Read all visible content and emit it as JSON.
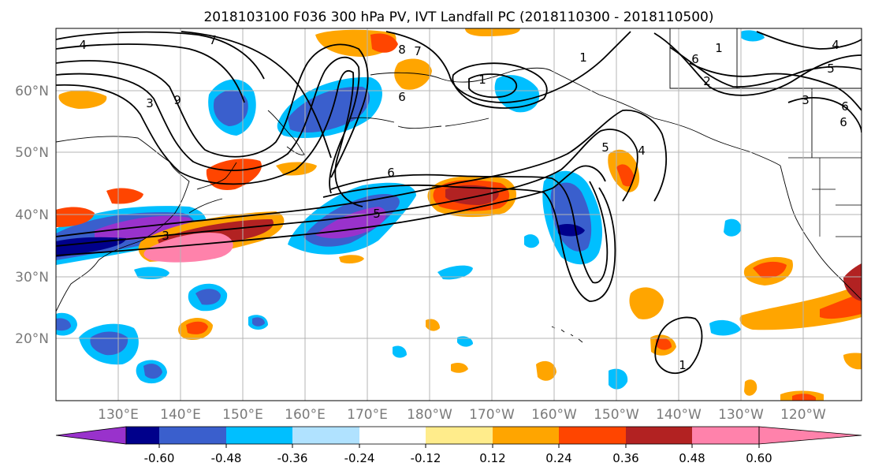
{
  "title": "2018103100 F036 300 hPa PV, IVT Landfall PC (2018110300 - 2018110500)",
  "lat_labels": [
    "60°N",
    "50°N",
    "40°N",
    "30°N",
    "20°N"
  ],
  "lon_labels": [
    "130°E",
    "140°E",
    "150°E",
    "160°E",
    "170°E",
    "180°W",
    "170°W",
    "160°W",
    "150°W",
    "140°W",
    "130°W",
    "120°W"
  ],
  "colorbar": {
    "colors": [
      "#9932cc",
      "#00008b",
      "#3a5fcd",
      "#00bfff",
      "#b0e2ff",
      "#ffffff",
      "#ffec8b",
      "#ffa500",
      "#ff4500",
      "#b22222",
      "#ff82ab"
    ],
    "tick_labels": [
      "-0.60",
      "-0.48",
      "-0.36",
      "-0.24",
      "-0.12",
      "0.12",
      "0.24",
      "0.36",
      "0.48",
      "0.60"
    ]
  },
  "contour_labels": [
    "4",
    "7",
    "3",
    "9",
    "8",
    "7",
    "6",
    "1",
    "6",
    "5",
    "4",
    "1",
    "2",
    "5",
    "3",
    "6",
    "6",
    "5",
    "4",
    "6",
    "3",
    "1",
    "1"
  ]
}
